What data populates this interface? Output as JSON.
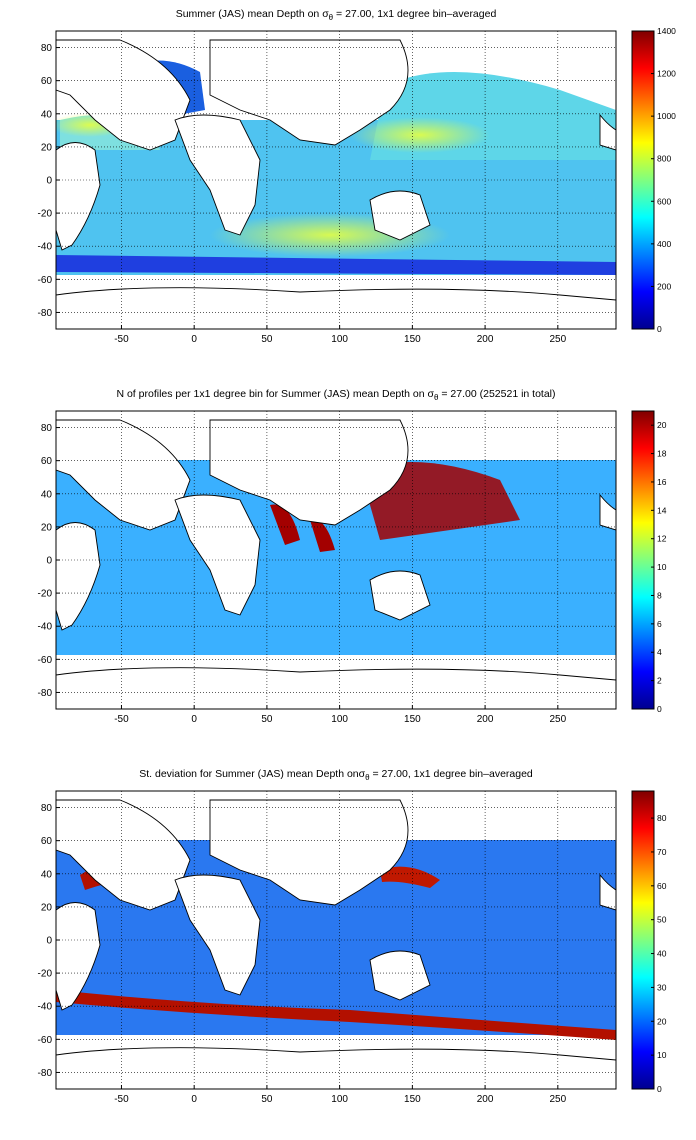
{
  "figure": {
    "panels": [
      {
        "title_parts": [
          "Summer (JAS) mean Depth on ",
          "σ",
          "θ",
          " = 27.00, 1x1 degree bin–averaged"
        ],
        "quantity": "mean depth",
        "colormap": "jet",
        "clim": [
          0,
          1400
        ],
        "colorbar_ticks": [
          "0",
          "200",
          "400",
          "600",
          "800",
          "1000",
          "1200",
          "1400"
        ]
      },
      {
        "title_parts": [
          "N of profiles per 1x1 degree bin for Summer (JAS) mean Depth on ",
          "σ",
          "θ",
          " = 27.00 (252521 in total)"
        ],
        "quantity": "profile count",
        "colormap": "jet",
        "clim": [
          0,
          21
        ],
        "colorbar_ticks": [
          "0",
          "2",
          "4",
          "6",
          "8",
          "10",
          "12",
          "14",
          "16",
          "18",
          "20"
        ]
      },
      {
        "title_parts": [
          "St. deviation for Summer (JAS) mean Depth on",
          "σ",
          "θ",
          " = 27.00, 1x1 degree bin–averaged"
        ],
        "quantity": "standard deviation",
        "colormap": "jet",
        "clim": [
          0,
          88
        ],
        "colorbar_ticks": [
          "0",
          "10",
          "20",
          "30",
          "40",
          "50",
          "60",
          "70",
          "80"
        ]
      }
    ],
    "map_axes": {
      "xlim": [
        -95,
        290
      ],
      "ylim": [
        -90,
        90
      ],
      "xticks": [
        "-50",
        "0",
        "50",
        "100",
        "150",
        "200",
        "250"
      ],
      "yticks": [
        "80",
        "60",
        "40",
        "20",
        "0",
        "-20",
        "-40",
        "-60",
        "-80"
      ],
      "grid": "dotted"
    }
  }
}
